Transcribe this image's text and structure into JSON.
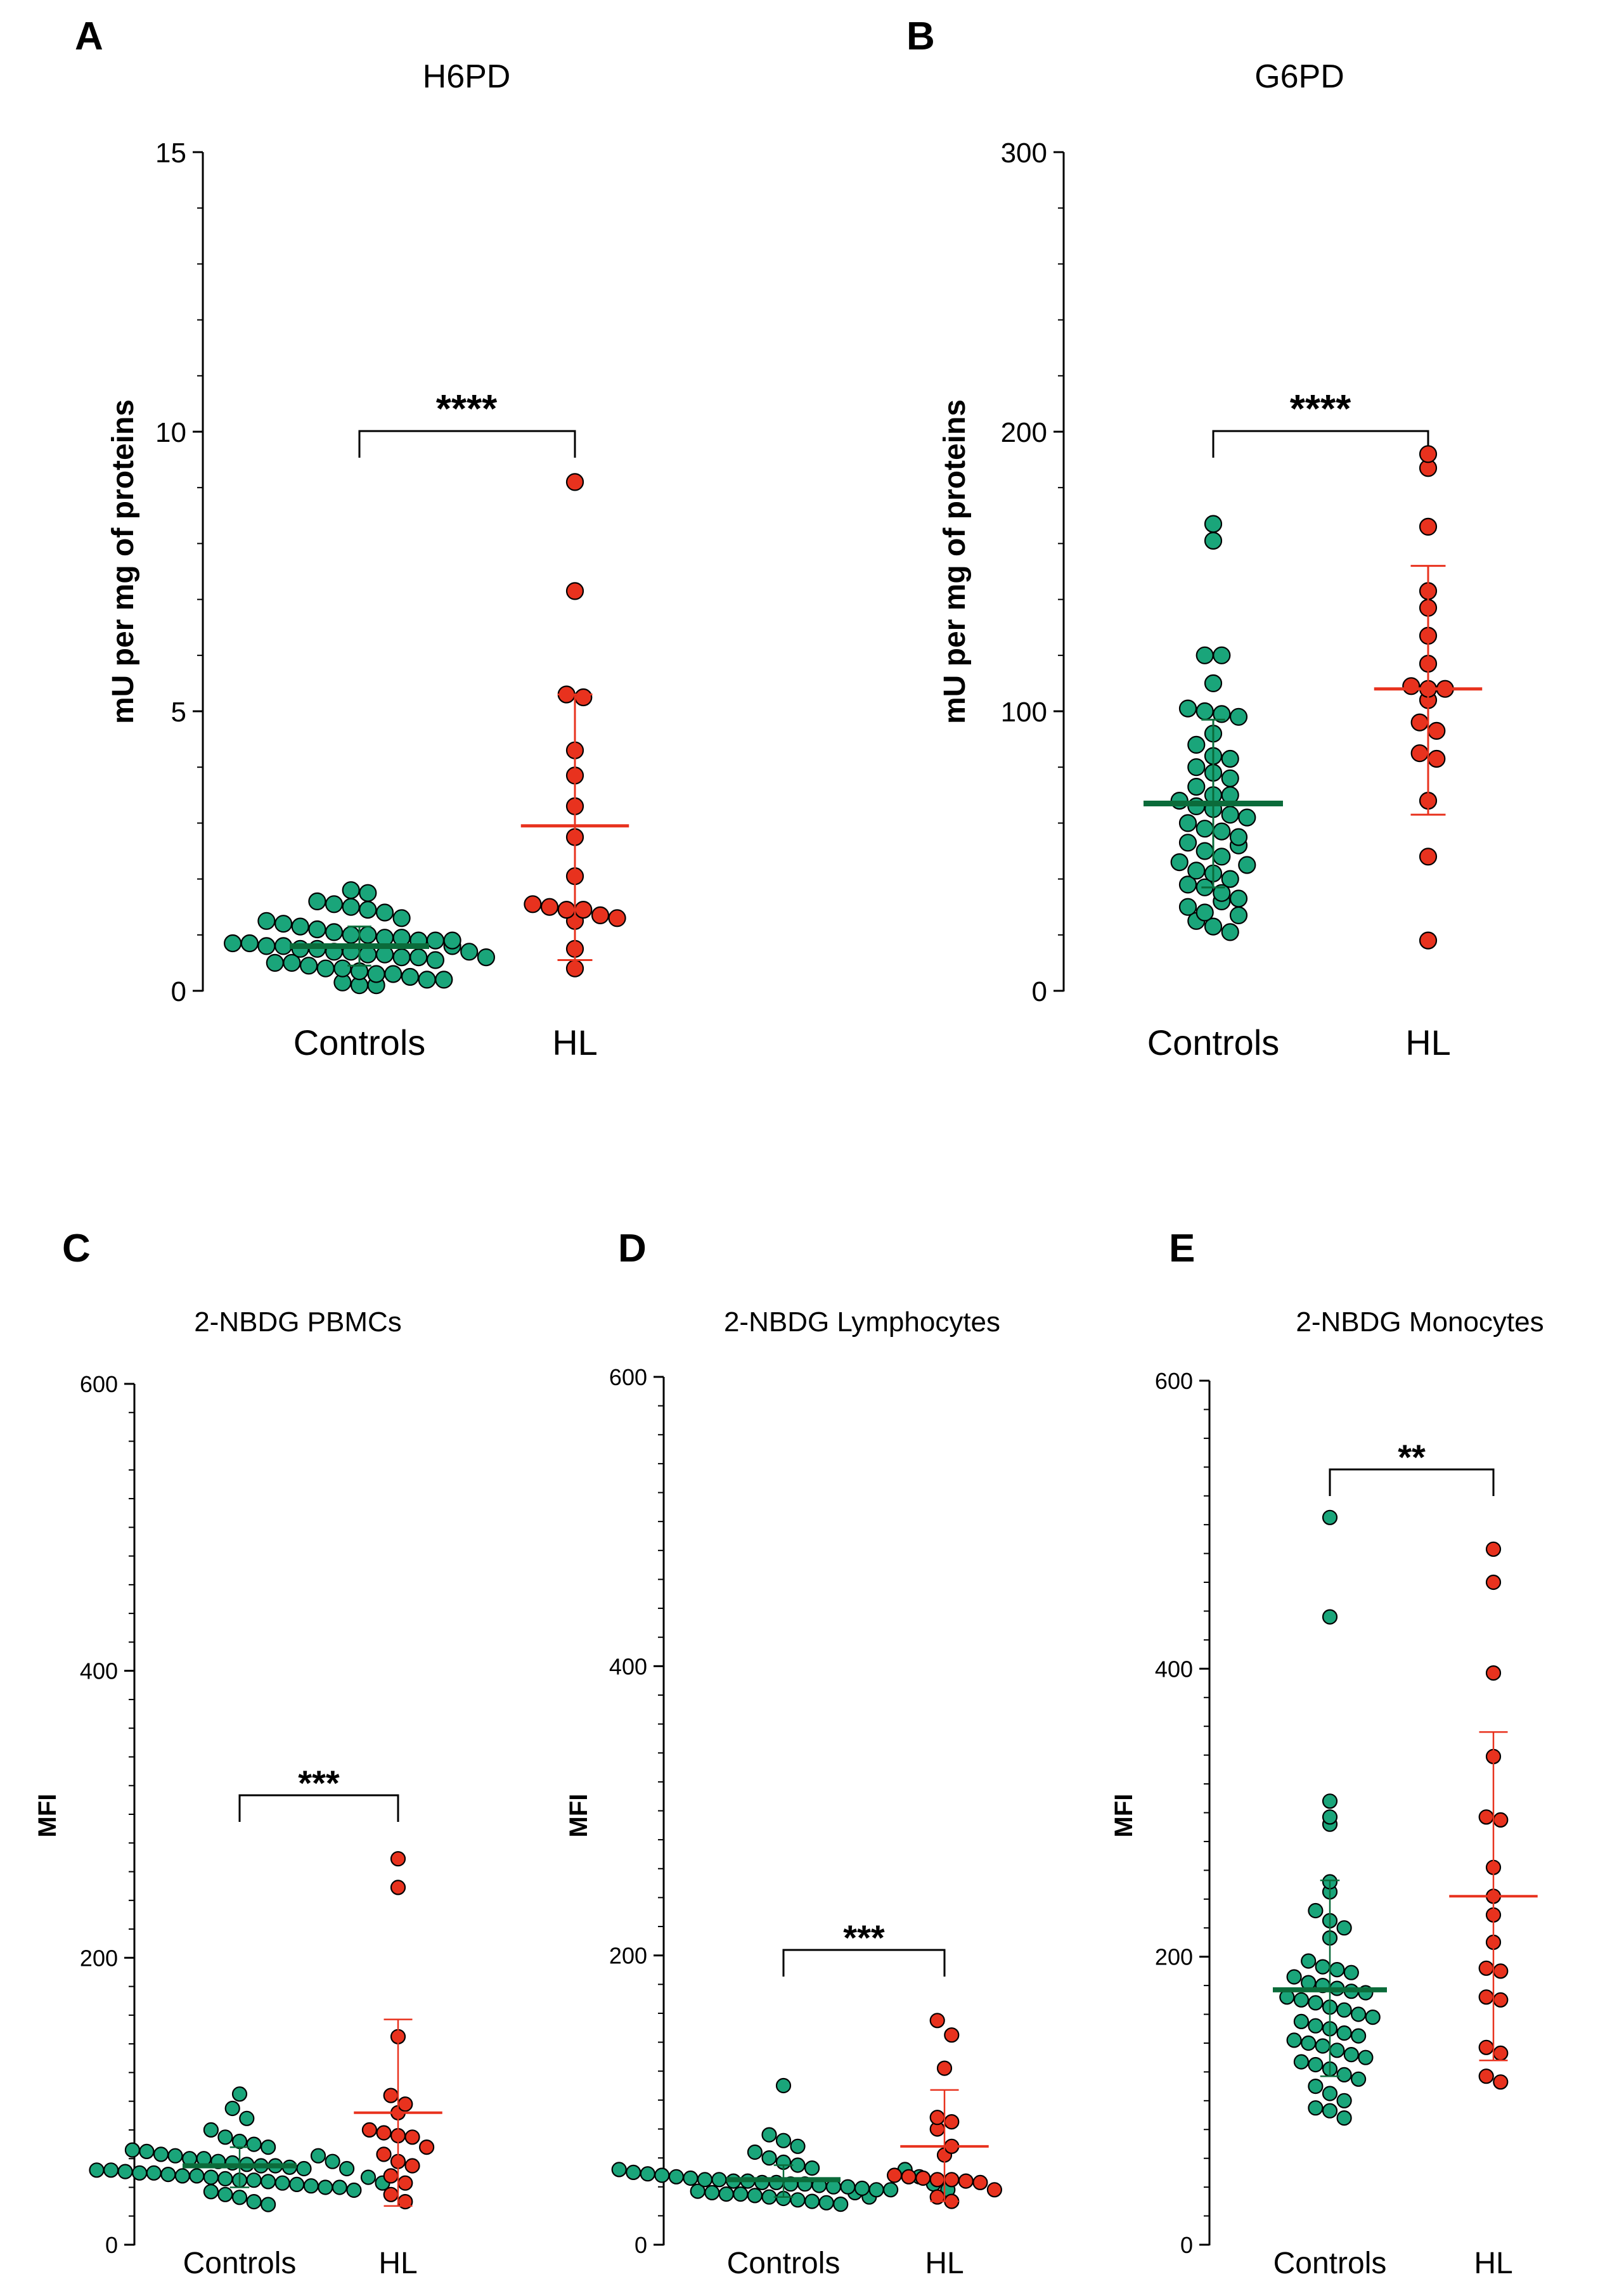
{
  "colors": {
    "control": "#1aa57a",
    "control_mean": "#0b6b3a",
    "hl": "#e8321e",
    "axis": "#000000"
  },
  "chart_data": [
    {
      "panel_letter": "A",
      "type": "scatter",
      "title": "H6PD",
      "ylabel": "mU per mg of proteins",
      "categories": [
        "Controls",
        "HL"
      ],
      "ylim": [
        0,
        15
      ],
      "yticks": [
        "0",
        "5",
        "10",
        "15"
      ],
      "ytick_values": [
        0,
        5,
        10,
        15
      ],
      "significance": "****",
      "series": [
        {
          "name": "Controls",
          "mean": 0.8,
          "sd_low": 0.45,
          "sd_high": 1.15,
          "values": [
            1.8,
            1.75,
            1.6,
            1.55,
            1.5,
            1.45,
            1.4,
            1.3,
            1.25,
            1.2,
            1.15,
            1.1,
            1.05,
            1.0,
            1.0,
            0.95,
            0.95,
            0.9,
            0.9,
            0.85,
            0.85,
            0.8,
            0.8,
            0.75,
            0.75,
            0.7,
            0.7,
            0.65,
            0.65,
            0.6,
            0.6,
            0.55,
            0.5,
            0.5,
            0.45,
            0.4,
            0.4,
            0.35,
            0.3,
            0.3,
            0.25,
            0.2,
            0.2,
            0.15,
            0.1,
            0.1,
            0.9,
            0.8,
            0.7,
            0.6
          ]
        },
        {
          "name": "HL",
          "mean": 2.95,
          "sd_low": 0.55,
          "sd_high": 5.3,
          "values": [
            9.1,
            7.15,
            5.3,
            5.25,
            4.3,
            3.85,
            3.3,
            2.75,
            2.05,
            1.55,
            1.5,
            1.45,
            1.45,
            1.35,
            1.3,
            1.25,
            0.75,
            0.4
          ]
        }
      ]
    },
    {
      "panel_letter": "B",
      "type": "scatter",
      "title": "G6PD",
      "ylabel": "mU per mg of proteins",
      "categories": [
        "Controls",
        "HL"
      ],
      "ylim": [
        0,
        300
      ],
      "yticks": [
        "0",
        "100",
        "200",
        "300"
      ],
      "ytick_values": [
        0,
        100,
        200,
        300
      ],
      "significance": "****",
      "series": [
        {
          "name": "Controls",
          "mean": 67,
          "sd_low": 37,
          "sd_high": 97,
          "values": [
            167,
            161,
            120,
            120,
            110,
            101,
            100,
            99,
            98,
            92,
            88,
            84,
            83,
            80,
            78,
            76,
            73,
            70,
            68,
            66,
            65,
            63,
            60,
            58,
            57,
            55,
            53,
            50,
            48,
            46,
            43,
            42,
            40,
            38,
            37,
            35,
            33,
            30,
            28,
            25,
            23,
            21,
            70,
            62,
            52,
            45,
            32,
            27
          ]
        },
        {
          "name": "HL",
          "mean": 108,
          "sd_low": 63,
          "sd_high": 152,
          "values": [
            192,
            187,
            166,
            143,
            137,
            127,
            117,
            109,
            108,
            108,
            104,
            96,
            93,
            85,
            83,
            68,
            48,
            18
          ]
        }
      ]
    },
    {
      "panel_letter": "C",
      "type": "scatter",
      "title": "2-NBDG PBMCs",
      "ylabel": "MFI",
      "categories": [
        "Controls",
        "HL"
      ],
      "ylim": [
        0,
        600
      ],
      "yticks": [
        "0",
        "200",
        "400",
        "600"
      ],
      "ytick_values": [
        0,
        200,
        400,
        600
      ],
      "significance": "***",
      "series": [
        {
          "name": "Controls",
          "mean": 55,
          "sd_low": 40,
          "sd_high": 68,
          "values": [
            105,
            95,
            88,
            80,
            75,
            72,
            70,
            68,
            66,
            65,
            63,
            62,
            60,
            60,
            58,
            57,
            56,
            55,
            55,
            54,
            53,
            52,
            52,
            51,
            50,
            50,
            49,
            48,
            48,
            47,
            46,
            45,
            45,
            44,
            43,
            42,
            41,
            40,
            40,
            38,
            37,
            35,
            33,
            30,
            28,
            62,
            58,
            53,
            47,
            43
          ]
        },
        {
          "name": "HL",
          "mean": 92,
          "sd_low": 27,
          "sd_high": 157,
          "values": [
            269,
            249,
            145,
            104,
            98,
            92,
            80,
            78,
            76,
            75,
            68,
            63,
            58,
            55,
            48,
            43,
            35,
            30
          ]
        }
      ]
    },
    {
      "panel_letter": "D",
      "type": "scatter",
      "title": "2-NBDG Lymphocytes",
      "ylabel": "MFI",
      "categories": [
        "Controls",
        "HL"
      ],
      "ylim": [
        0,
        600
      ],
      "yticks": [
        "0",
        "200",
        "400",
        "600"
      ],
      "ytick_values": [
        0,
        200,
        400,
        600
      ],
      "significance": "***",
      "series": [
        {
          "name": "Controls",
          "mean": 45,
          "sd_low": 33,
          "sd_high": 55,
          "values": [
            110,
            76,
            72,
            68,
            64,
            60,
            57,
            55,
            53,
            52,
            50,
            49,
            48,
            47,
            46,
            45,
            45,
            44,
            44,
            43,
            43,
            42,
            42,
            41,
            40,
            40,
            39,
            38,
            38,
            37,
            36,
            35,
            35,
            34,
            33,
            32,
            31,
            30,
            29,
            28,
            52,
            47,
            42,
            38,
            36,
            33
          ]
        },
        {
          "name": "HL",
          "mean": 68,
          "sd_low": 30,
          "sd_high": 107,
          "values": [
            155,
            145,
            122,
            88,
            85,
            80,
            68,
            62,
            48,
            47,
            46,
            45,
            45,
            44,
            43,
            38,
            33,
            30
          ]
        }
      ]
    },
    {
      "panel_letter": "E",
      "type": "scatter",
      "title": "2-NBDG Monocytes",
      "ylabel": "MFI",
      "categories": [
        "Controls",
        "HL"
      ],
      "ylim": [
        0,
        600
      ],
      "yticks": [
        "0",
        "200",
        "400",
        "600"
      ],
      "ytick_values": [
        0,
        200,
        400,
        600
      ],
      "significance": "**",
      "series": [
        {
          "name": "Controls",
          "mean": 177,
          "sd_low": 117,
          "sd_high": 253,
          "values": [
            505,
            436,
            308,
            297,
            292,
            252,
            245,
            232,
            225,
            220,
            213,
            197,
            193,
            191,
            189,
            186,
            182,
            180,
            178,
            176,
            175,
            172,
            170,
            168,
            165,
            163,
            160,
            158,
            155,
            152,
            150,
            147,
            145,
            142,
            140,
            138,
            135,
            132,
            130,
            127,
            125,
            122,
            118,
            115,
            110,
            105,
            100,
            95,
            93,
            88
          ]
        },
        {
          "name": "HL",
          "mean": 242,
          "sd_low": 128,
          "sd_high": 356,
          "values": [
            483,
            460,
            397,
            339,
            297,
            295,
            262,
            242,
            229,
            210,
            192,
            190,
            172,
            170,
            137,
            133,
            117,
            113
          ]
        }
      ]
    }
  ]
}
